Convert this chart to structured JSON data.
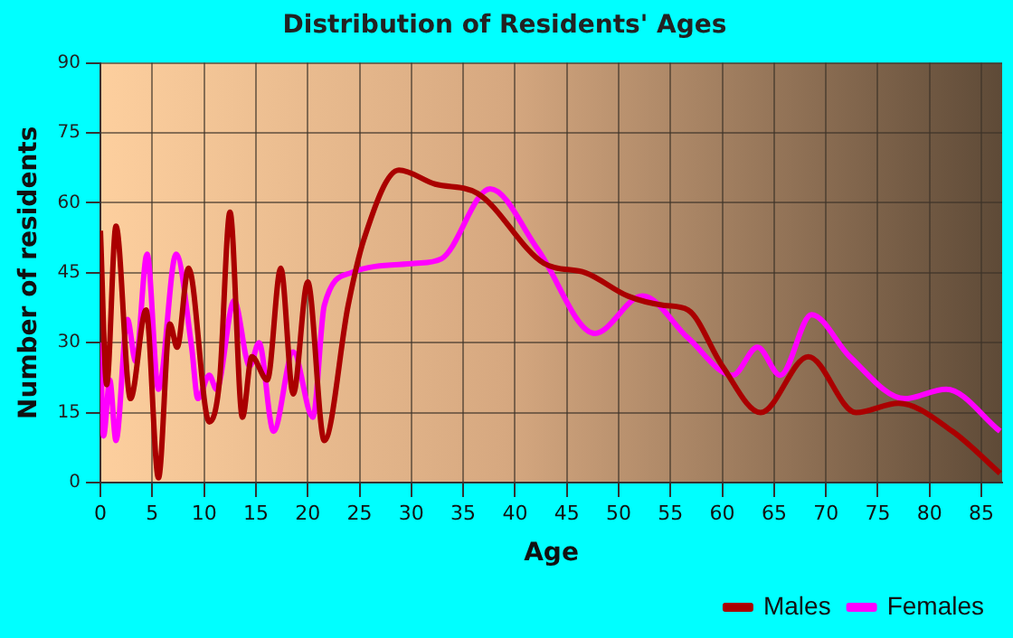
{
  "chart_data": {
    "type": "line",
    "title": "Distribution of Residents' Ages",
    "xlabel": "Age",
    "ylabel": "Number of residents",
    "xlim": [
      0,
      87
    ],
    "xticks": [
      0,
      5,
      10,
      15,
      20,
      25,
      30,
      35,
      40,
      45,
      50,
      55,
      60,
      65,
      70,
      75,
      80,
      85
    ],
    "ylim": [
      0,
      90
    ],
    "yticks": [
      0,
      15,
      30,
      45,
      60,
      75,
      90
    ],
    "grid": true,
    "legend": "bottom right",
    "marker": "none",
    "line_style": "solid",
    "series": [
      {
        "name": "Males",
        "color": "#aa0000",
        "x": [
          0,
          0.6,
          1.5,
          2.9,
          4.4,
          5.6,
          6.7,
          7.4,
          8.5,
          10.5,
          11.5,
          12.5,
          13.7,
          14.6,
          16.1,
          17.4,
          18.6,
          20,
          21.6,
          23.9,
          25.4,
          28.8,
          32.3,
          36.4,
          42.8,
          46.8,
          50.9,
          54.4,
          56.7,
          60,
          63.7,
          68.3,
          72.9,
          77,
          82.2,
          86.8
        ],
        "values": [
          54,
          21,
          55,
          18,
          37,
          1,
          34,
          29,
          46,
          13,
          22,
          58,
          14,
          27,
          22,
          46,
          19,
          43,
          9,
          38,
          52,
          67,
          64,
          62,
          47,
          45,
          40,
          38,
          37,
          25,
          15,
          27,
          15,
          17,
          11,
          2
        ]
      },
      {
        "name": "Females",
        "color": "#ff00ff",
        "x": [
          0,
          0.3,
          0.9,
          1.5,
          2.6,
          3.4,
          4.5,
          5.6,
          7.3,
          8.8,
          9.4,
          10.5,
          11.2,
          12.9,
          14.4,
          15.3,
          16.7,
          18.6,
          20.5,
          21.6,
          24.2,
          30.3,
          32.9,
          37.6,
          42.2,
          47.7,
          52.3,
          56.7,
          61,
          63.4,
          65.6,
          68.6,
          72.3,
          77.6,
          81.6,
          86.8
        ],
        "values": [
          30,
          10,
          22,
          9,
          35,
          26,
          49,
          20,
          49,
          29,
          18,
          23,
          20,
          39,
          25,
          30,
          11,
          28,
          14,
          38,
          45,
          47,
          48,
          63,
          50,
          32,
          40,
          31,
          23,
          29,
          23,
          36,
          27,
          18,
          20,
          11
        ]
      }
    ]
  }
}
